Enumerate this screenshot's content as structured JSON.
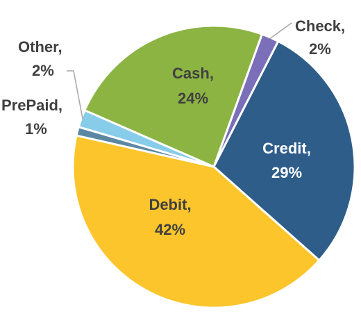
{
  "chart_data": {
    "type": "pie",
    "title": "",
    "slices": [
      {
        "name": "Check",
        "label": "Check,",
        "pct_label": "2%",
        "value": 2,
        "color": "#7a6fb8"
      },
      {
        "name": "Credit",
        "label": "Credit,",
        "pct_label": "29%",
        "value": 29,
        "color": "#2e5d8a"
      },
      {
        "name": "Debit",
        "label": "Debit,",
        "pct_label": "42%",
        "value": 42,
        "color": "#fbc52b"
      },
      {
        "name": "PrePaid",
        "label": "PrePaid,",
        "pct_label": "1%",
        "value": 1,
        "color": "#5b87a3"
      },
      {
        "name": "Other",
        "label": "Other,",
        "pct_label": "2%",
        "value": 2,
        "color": "#87cce8"
      },
      {
        "name": "Cash",
        "label": "Cash,",
        "pct_label": "24%",
        "value": 24,
        "color": "#8cb443"
      }
    ],
    "label_text_colors": {
      "inside_light": "#ffffff",
      "inside_dark": "#404040",
      "outside": "#404040"
    },
    "leader_line_color": "#a6a6a6",
    "legend": "none"
  }
}
